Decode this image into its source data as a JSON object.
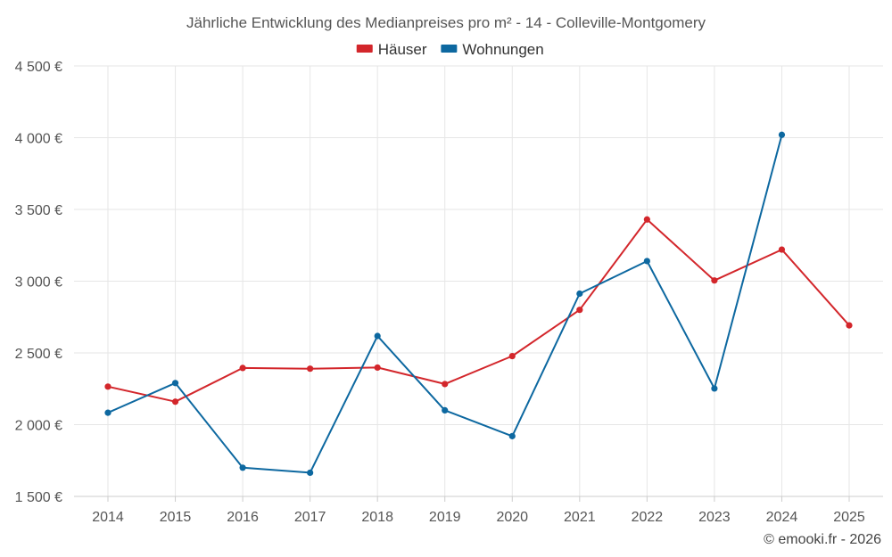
{
  "chart_data": {
    "type": "line",
    "title": "Jährliche Entwicklung des Medianpreises pro m² - 14 - Colleville-Montgomery",
    "categories": [
      "2014",
      "2015",
      "2016",
      "2017",
      "2018",
      "2019",
      "2020",
      "2021",
      "2022",
      "2023",
      "2024",
      "2025"
    ],
    "ylim": [
      1500,
      4500
    ],
    "yticks": [
      1500,
      2000,
      2500,
      3000,
      3500,
      4000,
      4500
    ],
    "ytick_labels": [
      "1 500 €",
      "2 000 €",
      "2 500 €",
      "3 000 €",
      "3 500 €",
      "4 000 €",
      "4 500 €"
    ],
    "grid": true,
    "legend_position": "top-center",
    "series": [
      {
        "name": "Häuser",
        "color": "#d3262b",
        "values": [
          2265,
          2160,
          2395,
          2390,
          2398,
          2283,
          2478,
          2800,
          3430,
          3005,
          3220,
          2692
        ]
      },
      {
        "name": "Wohnungen",
        "color": "#0d68a0",
        "values": [
          2083,
          2290,
          1700,
          1665,
          2618,
          2100,
          1920,
          2913,
          3140,
          2252,
          4020,
          null
        ]
      }
    ]
  },
  "credit": "© emooki.fr - 2026"
}
